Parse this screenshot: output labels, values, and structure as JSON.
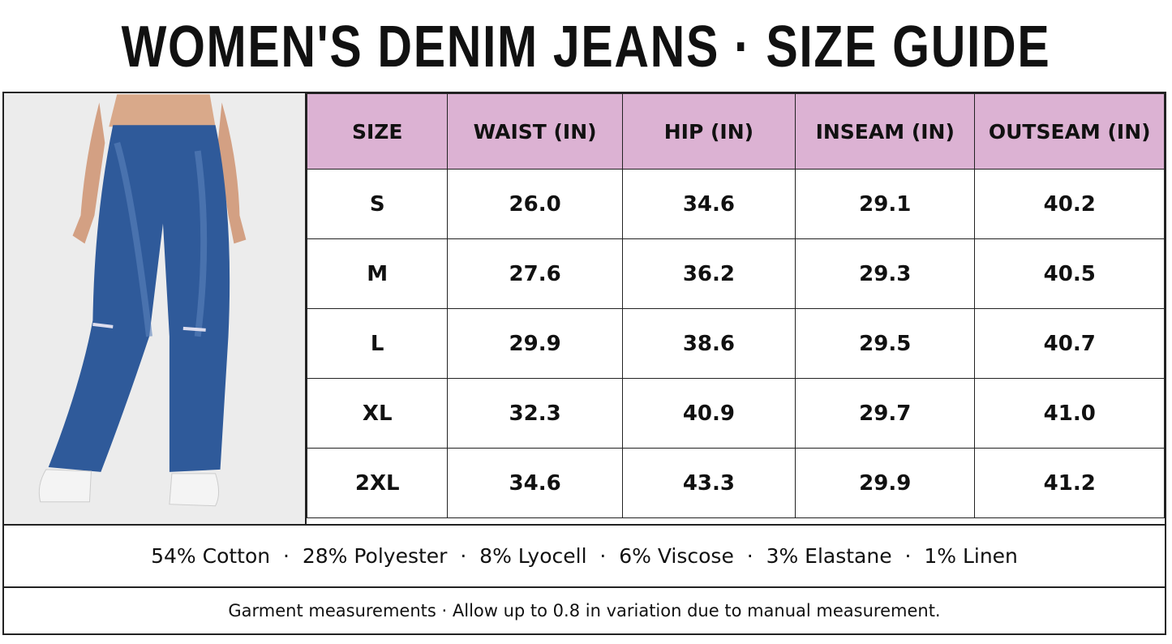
{
  "header": {
    "title": "WOMEN'S DENIM JEANS · SIZE GUIDE"
  },
  "table": {
    "columns": [
      "SIZE",
      "WAIST (IN)",
      "HIP (IN)",
      "INSEAM (IN)",
      "OUTSEAM (IN)"
    ],
    "rows": [
      [
        "S",
        "26.0",
        "34.6",
        "29.1",
        "40.2"
      ],
      [
        "M",
        "27.6",
        "36.2",
        "29.3",
        "40.5"
      ],
      [
        "L",
        "29.9",
        "38.6",
        "29.5",
        "40.7"
      ],
      [
        "XL",
        "32.3",
        "40.9",
        "29.7",
        "41.0"
      ],
      [
        "2XL",
        "34.6",
        "43.3",
        "29.9",
        "41.2"
      ]
    ]
  },
  "composition": "54% Cotton  ·  28% Polyester  ·  8% Lyocell  ·  6% Viscose  ·  3% Elastane  ·  1% Linen",
  "note": "Garment measurements · Allow up to 0.8 in variation due to manual measurement."
}
